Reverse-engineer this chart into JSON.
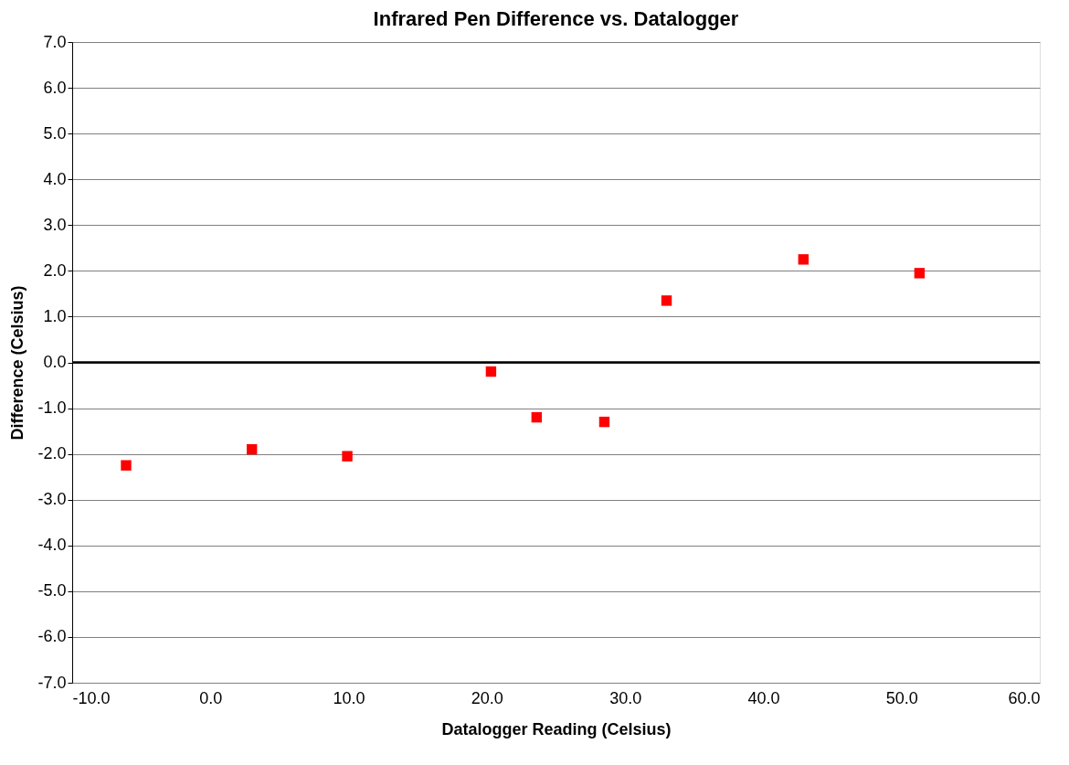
{
  "chart_data": {
    "type": "scatter",
    "title": "Infrared Pen Difference vs. Datalogger",
    "xlabel": "Datalogger Reading (Celsius)",
    "ylabel": "Difference (Celsius)",
    "x": [
      -6.1,
      3.0,
      9.9,
      20.3,
      23.6,
      28.5,
      33.0,
      42.9,
      51.3
    ],
    "series": [
      {
        "color": "#ff0000",
        "values": [
          -2.25,
          -1.9,
          -2.05,
          -0.2,
          -1.2,
          -1.3,
          1.35,
          2.25,
          1.95
        ]
      }
    ],
    "xlim": [
      -10,
      60
    ],
    "xticks": [
      {
        "value": -10,
        "label": "-10.0"
      },
      {
        "value": 0,
        "label": "0.0"
      },
      {
        "value": 10,
        "label": "10.0"
      },
      {
        "value": 20,
        "label": "20.0"
      },
      {
        "value": 30,
        "label": "30.0"
      },
      {
        "value": 40,
        "label": "40.0"
      },
      {
        "value": 50,
        "label": "50.0"
      },
      {
        "value": 60,
        "label": "60.0"
      }
    ],
    "ylim": [
      -7,
      7
    ],
    "yticks": [
      {
        "value": -7,
        "label": "-7.0"
      },
      {
        "value": -6,
        "label": "-6.0"
      },
      {
        "value": -5,
        "label": "-5.0"
      },
      {
        "value": -4,
        "label": "-4.0"
      },
      {
        "value": -3,
        "label": "-3.0"
      },
      {
        "value": -2,
        "label": "-2.0"
      },
      {
        "value": -1,
        "label": "-1.0"
      },
      {
        "value": 0,
        "label": "0.0"
      },
      {
        "value": 1,
        "label": "1.0"
      },
      {
        "value": 2,
        "label": "2.0"
      },
      {
        "value": 3,
        "label": "3.0"
      },
      {
        "value": 4,
        "label": "4.0"
      },
      {
        "value": 5,
        "label": "5.0"
      },
      {
        "value": 6,
        "label": "6.0"
      },
      {
        "value": 7,
        "label": "7.0"
      }
    ],
    "grid": "y",
    "marker": "square",
    "legend": false
  }
}
